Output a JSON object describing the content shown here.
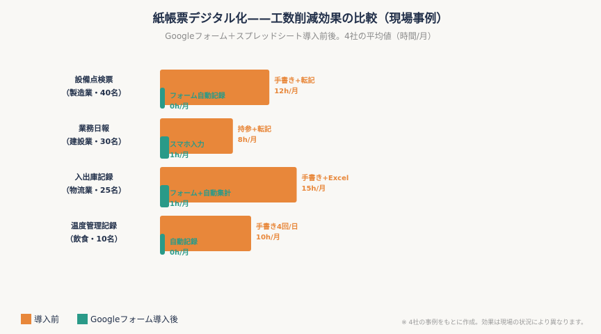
{
  "colors": {
    "before": "#e8873a",
    "after": "#2a9a88",
    "before_text": "#e8873a",
    "after_text": "#2a9a88"
  },
  "legend": {
    "before": "導入前",
    "after": "Googleフォーム導入後"
  },
  "footnote": "※ 4社の事例をもとに作成。効果は現場の状況により異なります。",
  "chart_data": {
    "type": "bar",
    "orientation": "horizontal",
    "title": "紙帳票デジタル化——工数削減効果の比較（現場事例）",
    "subtitle": "Googleフォーム＋スプレッドシート導入前後。4社の平均値（時間/月）",
    "unit": "h/月",
    "categories": [
      {
        "name": "設備点検票",
        "sub": "（製造業・40名）"
      },
      {
        "name": "業務日報",
        "sub": "（建設業・30名）"
      },
      {
        "name": "入出庫記録",
        "sub": "（物流業・25名）"
      },
      {
        "name": "温度管理記録",
        "sub": "（飲食・10名）"
      }
    ],
    "series": [
      {
        "name": "導入前",
        "values": [
          12,
          8,
          15,
          10
        ],
        "labels": [
          "手書き+転記",
          "持参+転記",
          "手書き+Excel",
          "手書き4回/日"
        ],
        "value_labels": [
          "12h/月",
          "8h/月",
          "15h/月",
          "10h/月"
        ]
      },
      {
        "name": "Googleフォーム導入後",
        "values": [
          0,
          1,
          1,
          0
        ],
        "labels": [
          "フォーム自動記録",
          "スマホ入力",
          "フォーム+自動集計",
          "自動記録"
        ],
        "value_labels": [
          "0h/月",
          "1h/月",
          "1h/月",
          "0h/月"
        ]
      }
    ]
  }
}
